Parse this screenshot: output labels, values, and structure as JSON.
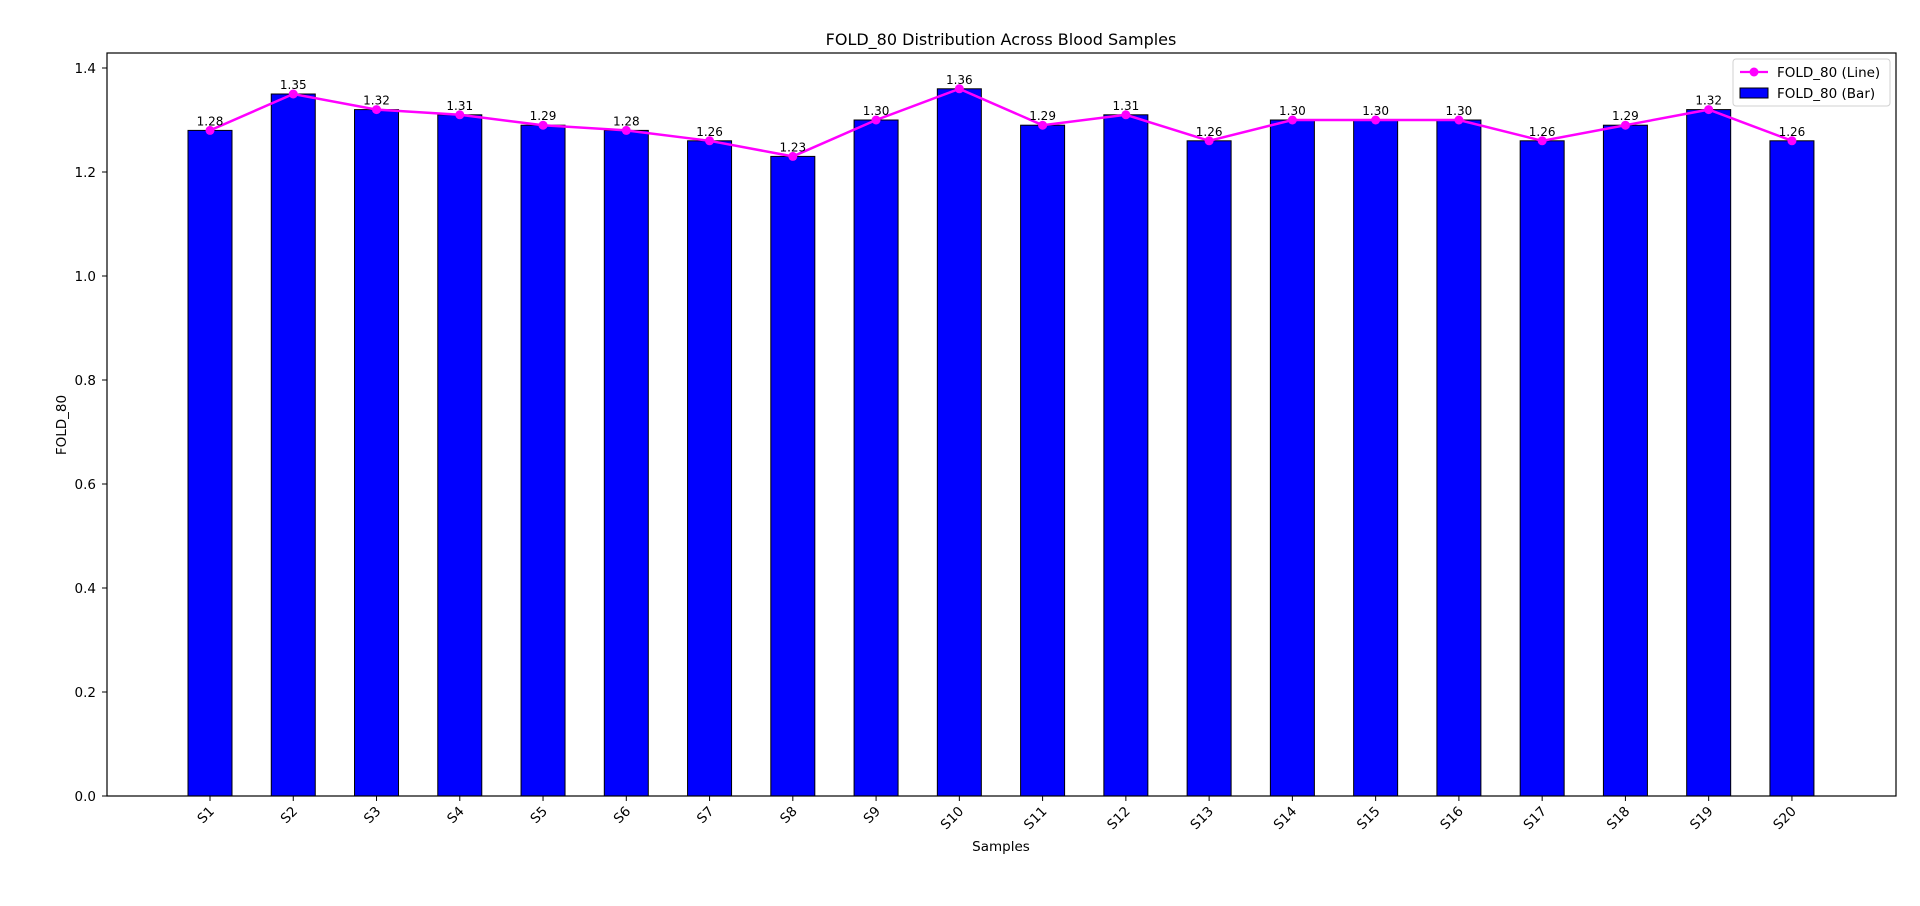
{
  "chart_data": {
    "type": "bar",
    "title": "FOLD_80 Distribution Across Blood Samples",
    "xlabel": "Samples",
    "ylabel": "FOLD_80",
    "ylim": [
      0,
      1.43
    ],
    "yticks": [
      "0.0",
      "0.2",
      "0.4",
      "0.6",
      "0.8",
      "1.0",
      "1.2",
      "1.4"
    ],
    "categories": [
      "S1",
      "S2",
      "S3",
      "S4",
      "S5",
      "S6",
      "S7",
      "S8",
      "S9",
      "S10",
      "S11",
      "S12",
      "S13",
      "S14",
      "S15",
      "S16",
      "S17",
      "S18",
      "S19",
      "S20"
    ],
    "series": [
      {
        "name": "FOLD_80 (Bar)",
        "type": "bar",
        "color": "#0000ff",
        "edgecolor": "#000000",
        "values": [
          1.28,
          1.35,
          1.32,
          1.31,
          1.29,
          1.28,
          1.26,
          1.23,
          1.3,
          1.36,
          1.29,
          1.31,
          1.26,
          1.3,
          1.3,
          1.3,
          1.26,
          1.29,
          1.32,
          1.26
        ]
      },
      {
        "name": "FOLD_80 (Line)",
        "type": "line",
        "color": "#ff00ff",
        "marker": "circle",
        "values": [
          1.28,
          1.35,
          1.32,
          1.31,
          1.29,
          1.28,
          1.26,
          1.23,
          1.3,
          1.36,
          1.29,
          1.31,
          1.26,
          1.3,
          1.3,
          1.3,
          1.26,
          1.29,
          1.32,
          1.26
        ]
      }
    ],
    "data_labels": [
      "1.28",
      "1.35",
      "1.32",
      "1.31",
      "1.29",
      "1.28",
      "1.26",
      "1.23",
      "1.30",
      "1.36",
      "1.29",
      "1.31",
      "1.26",
      "1.30",
      "1.30",
      "1.30",
      "1.26",
      "1.29",
      "1.32",
      "1.26"
    ],
    "legend": {
      "position": "upper right",
      "entries": [
        "FOLD_80 (Line)",
        "FOLD_80 (Bar)"
      ]
    },
    "grid": false,
    "xtick_rotation": 45
  }
}
